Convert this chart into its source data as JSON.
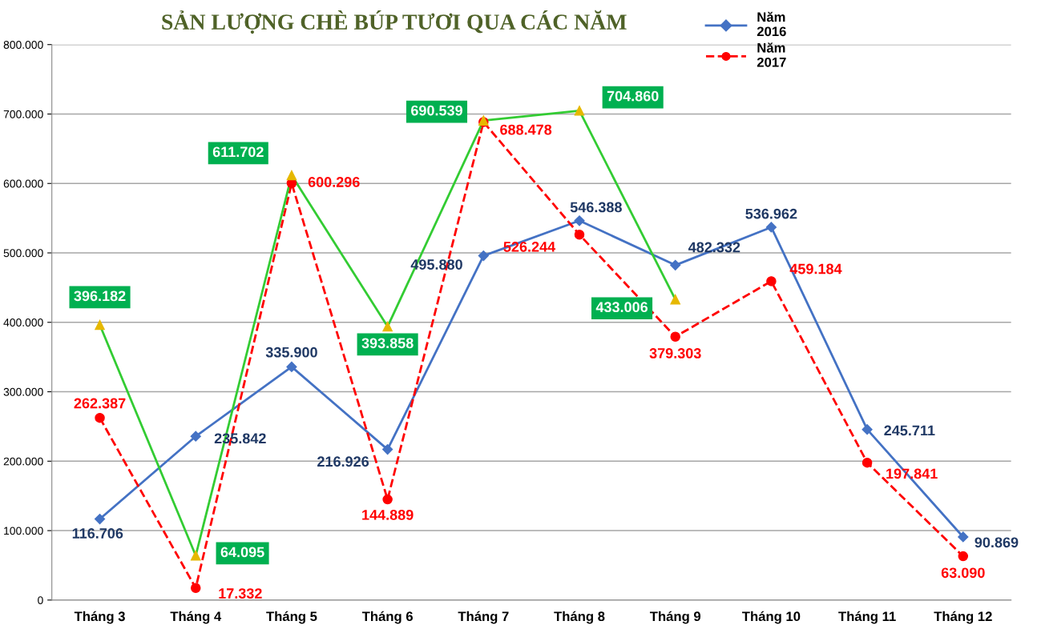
{
  "chart_data": {
    "type": "line",
    "title": "SẢN LƯỢNG CHÈ BÚP TƯƠI QUA CÁC NĂM",
    "categories": [
      "Tháng 3",
      "Tháng 4",
      "Tháng 5",
      "Tháng 6",
      "Tháng 7",
      "Tháng 8",
      "Tháng 9",
      "Tháng 10",
      "Tháng 11",
      "Tháng 12"
    ],
    "series": [
      {
        "name": "Năm\n2016",
        "color": "#4472c4",
        "marker": "diamond",
        "line_style": "solid",
        "values": [
          116706,
          235842,
          335900,
          216926,
          495880,
          546388,
          482332,
          536962,
          245711,
          90869
        ],
        "value_labels": [
          "116.706",
          "235.842",
          "335.900",
          "216.926",
          "495.880",
          "546.388",
          "482.332",
          "536.962",
          "245.711",
          "90.869"
        ]
      },
      {
        "name": "Năm\n2017",
        "color": "#ff0000",
        "marker": "circle",
        "line_style": "dashed",
        "values": [
          262387,
          17332,
          600296,
          144889,
          688478,
          526244,
          379303,
          459184,
          197841,
          63090
        ],
        "value_labels": [
          "262.387",
          "17.332",
          "600.296",
          "144.889",
          "688.478",
          "526.244",
          "379.303",
          "459.184",
          "197.841",
          "63.090"
        ]
      },
      {
        "color": "#33cc33",
        "colors": [
          "#e6b800",
          "#e6b800",
          "#e6b800",
          "#e6b800",
          "#e6b800",
          "#e6b800",
          "#e6b800",
          null,
          null,
          null
        ],
        "marker": "triangle",
        "line_style": "solid",
        "values": [
          396182,
          64095,
          611702,
          393858,
          690539,
          704860,
          433006,
          null,
          null,
          null
        ],
        "value_labels": [
          "396.182",
          "64.095",
          "611.702",
          "393.858",
          "690.539",
          "704.860",
          "433.006",
          null,
          null,
          null
        ]
      }
    ],
    "ylim": [
      0,
      800000
    ],
    "yticks": [
      {
        "value": 0,
        "label": "0"
      },
      {
        "value": 100000,
        "label": "100.000"
      },
      {
        "value": 200000,
        "label": "200.000"
      },
      {
        "value": 300000,
        "label": "300.000"
      },
      {
        "value": 400000,
        "label": "400.000"
      },
      {
        "value": 500000,
        "label": "500.000"
      },
      {
        "value": 600000,
        "label": "600.000"
      },
      {
        "value": 700000,
        "label": "700.000"
      },
      {
        "value": 800000,
        "label": "800.000"
      }
    ],
    "grid": "y",
    "legend": "top right"
  }
}
